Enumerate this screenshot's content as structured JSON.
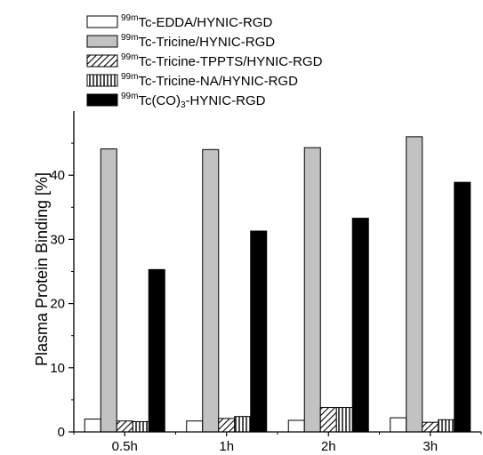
{
  "chart_data": {
    "type": "bar",
    "title": "",
    "xlabel": "",
    "ylabel": "Plasma Protein Binding [%]",
    "ylim": [
      0,
      50
    ],
    "yticks": [
      0,
      10,
      20,
      30,
      40
    ],
    "categories": [
      "0.5h",
      "1h",
      "2h",
      "3h"
    ],
    "legend_position": "top-left",
    "grid": false,
    "series": [
      {
        "name": "99mTc-EDDA/HYNIC-RGD",
        "sup": "99m",
        "text": "Tc-EDDA/HYNIC-RGD",
        "pattern": "white",
        "values": [
          2.0,
          1.7,
          1.8,
          2.2
        ]
      },
      {
        "name": "99mTc-Tricine/HYNIC-RGD",
        "sup": "99m",
        "text": "Tc-Tricine/HYNIC-RGD",
        "pattern": "gray",
        "values": [
          44.1,
          44.0,
          44.3,
          46.0
        ]
      },
      {
        "name": "99mTc-Tricine-TPPTS/HYNIC-RGD",
        "sup": "99m",
        "text": "Tc-Tricine-TPPTS/HYNIC-RGD",
        "pattern": "diagonal",
        "values": [
          1.7,
          2.1,
          3.8,
          1.5
        ]
      },
      {
        "name": "99mTc-Tricine-NA/HYNIC-RGD",
        "sup": "99m",
        "text": "Tc-Tricine-NA/HYNIC-RGD",
        "pattern": "vertical",
        "values": [
          1.6,
          2.4,
          3.8,
          1.9
        ]
      },
      {
        "name": "99mTc(CO)3-HYNIC-RGD",
        "sup": "99m",
        "text_parts": [
          "Tc(CO)",
          "3",
          "-HYNIC-RGD"
        ],
        "pattern": "black",
        "values": [
          25.3,
          31.3,
          33.3,
          38.9
        ]
      }
    ]
  }
}
